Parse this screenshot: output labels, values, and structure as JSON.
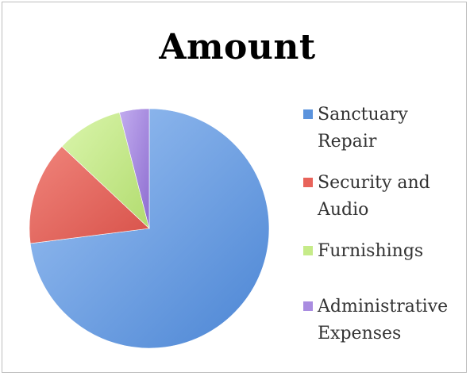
{
  "chart_data": {
    "type": "pie",
    "title": "Amount",
    "categories": [
      "Sanctuary Repair",
      "Security and Audio",
      "Furnishings",
      "Administrative Expenses"
    ],
    "values": [
      73,
      14,
      9,
      4
    ],
    "colors": [
      "#5b93dd",
      "#e8635a",
      "#c6eb89",
      "#a98ce0"
    ],
    "start_angle_deg": 0,
    "direction": "clockwise",
    "legend_position": "right"
  },
  "legend": {
    "items": [
      {
        "label_lines": [
          "Sanctuary",
          "Repair"
        ]
      },
      {
        "label_lines": [
          "Security and",
          "Audio"
        ]
      },
      {
        "label_lines": [
          "Furnishings"
        ]
      },
      {
        "label_lines": [
          "Administrative",
          "Expenses"
        ]
      }
    ]
  }
}
